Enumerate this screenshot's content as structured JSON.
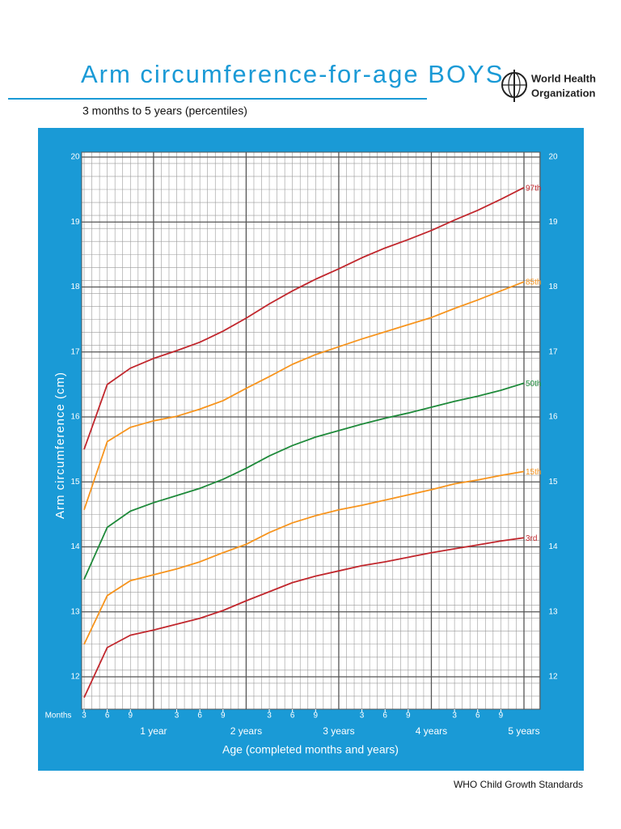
{
  "header": {
    "organization": [
      "World Health",
      "Organization"
    ]
  },
  "footer": "WHO Child Growth Standards",
  "chart_data": {
    "type": "line",
    "title": "Arm circumference-for-age  BOYS",
    "subtitle": "3 months to 5 years (percentiles)",
    "y_label": "Arm circumference (cm)",
    "x_label": "Age (completed months and years)",
    "x_row_label": "Months",
    "x": [
      3,
      6,
      9,
      12,
      15,
      18,
      21,
      24,
      27,
      30,
      33,
      36,
      39,
      42,
      45,
      48,
      51,
      54,
      57,
      60
    ],
    "xlim": [
      3,
      60
    ],
    "xticks": [
      3,
      6,
      9,
      {
        "value": 12,
        "label": "1 year"
      },
      {
        "value": 15,
        "label": "3"
      },
      {
        "value": 18,
        "label": "6"
      },
      {
        "value": 21,
        "label": "9"
      },
      {
        "value": 24,
        "label": "2 years"
      },
      {
        "value": 27,
        "label": "3"
      },
      {
        "value": 30,
        "label": "6"
      },
      {
        "value": 33,
        "label": "9"
      },
      {
        "value": 36,
        "label": "3 years"
      },
      {
        "value": 39,
        "label": "3"
      },
      {
        "value": 42,
        "label": "6"
      },
      {
        "value": 45,
        "label": "9"
      },
      {
        "value": 48,
        "label": "4 years"
      },
      {
        "value": 51,
        "label": "3"
      },
      {
        "value": 54,
        "label": "6"
      },
      {
        "value": 57,
        "label": "9"
      },
      {
        "value": 60,
        "label": "5 years"
      }
    ],
    "ylim": [
      11.5,
      20
    ],
    "yticks": [
      12,
      13,
      14,
      15,
      16,
      17,
      18,
      19,
      20
    ],
    "grid": true,
    "series": [
      {
        "name": "97th",
        "color": "#c1272d",
        "values": [
          15.5,
          16.5,
          16.75,
          16.9,
          17.02,
          17.15,
          17.32,
          17.52,
          17.74,
          17.94,
          18.12,
          18.28,
          18.45,
          18.6,
          18.73,
          18.87,
          19.03,
          19.18,
          19.35,
          19.53
        ]
      },
      {
        "name": "85th",
        "color": "#f7941d",
        "values": [
          14.57,
          15.62,
          15.84,
          15.94,
          16.01,
          16.12,
          16.25,
          16.44,
          16.62,
          16.81,
          16.96,
          17.08,
          17.2,
          17.31,
          17.42,
          17.53,
          17.67,
          17.8,
          17.94,
          18.08
        ]
      },
      {
        "name": "50th",
        "color": "#1e8a3a",
        "values": [
          13.5,
          14.3,
          14.55,
          14.68,
          14.79,
          14.9,
          15.04,
          15.21,
          15.4,
          15.56,
          15.69,
          15.79,
          15.89,
          15.98,
          16.06,
          16.15,
          16.24,
          16.32,
          16.41,
          16.52
        ]
      },
      {
        "name": "15th",
        "color": "#f7941d",
        "values": [
          12.5,
          13.25,
          13.48,
          13.57,
          13.66,
          13.77,
          13.91,
          14.04,
          14.22,
          14.37,
          14.48,
          14.57,
          14.64,
          14.72,
          14.8,
          14.88,
          14.97,
          15.03,
          15.1,
          15.16
        ]
      },
      {
        "name": "3rd",
        "color": "#c1272d",
        "values": [
          11.68,
          12.45,
          12.64,
          12.72,
          12.81,
          12.9,
          13.02,
          13.17,
          13.31,
          13.45,
          13.55,
          13.63,
          13.71,
          13.77,
          13.84,
          13.91,
          13.97,
          14.03,
          14.09,
          14.14
        ]
      }
    ]
  }
}
